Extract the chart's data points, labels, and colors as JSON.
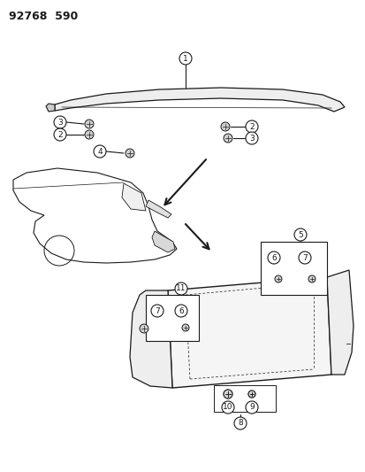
{
  "title": "92768  590",
  "bg_color": "#ffffff",
  "line_color": "#1a1a1a",
  "fig_width": 4.14,
  "fig_height": 5.33,
  "dpi": 100
}
